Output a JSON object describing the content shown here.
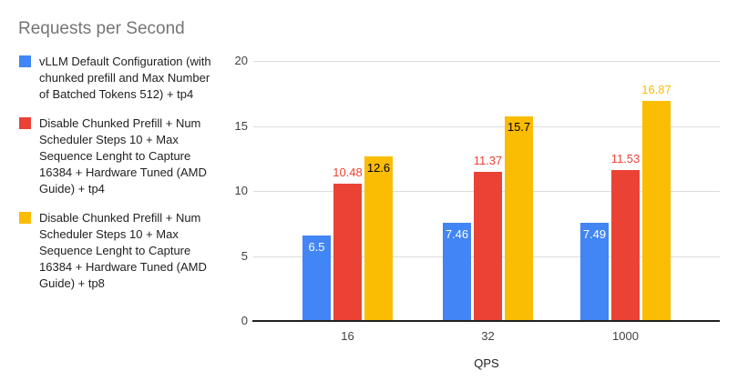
{
  "chart_data": {
    "type": "bar",
    "title": "Requests per Second",
    "title_color": "#757575",
    "xlabel": "QPS",
    "ylabel": "",
    "ylim": [
      0,
      20
    ],
    "yticks": [
      0,
      5,
      10,
      15,
      20
    ],
    "grid": true,
    "legend_position": "left",
    "categories": [
      "16",
      "32",
      "1000"
    ],
    "series": [
      {
        "name": "vLLM Default Configuration (with chunked prefill and Max Number of Batched Tokens 512) + tp4",
        "color": "#4285F4",
        "values": [
          6.5,
          7.46,
          7.49
        ],
        "value_labels": [
          "6.5",
          "7.46",
          "7.49"
        ],
        "label_placement": [
          "inside",
          "inside",
          "inside"
        ],
        "label_color_inside": "#ffffff"
      },
      {
        "name": "Disable Chunked Prefill + Num Scheduler Steps 10 + Max Sequence Lenght to Capture 16384 + Hardware Tuned (AMD Guide) + tp4",
        "color": "#EA4335",
        "values": [
          10.48,
          11.37,
          11.53
        ],
        "value_labels": [
          "10.48",
          "11.37",
          "11.53"
        ],
        "label_placement": [
          "above",
          "above",
          "above"
        ],
        "label_color_inside": "#000000"
      },
      {
        "name": "Disable Chunked Prefill + Num Scheduler Steps 10 + Max Sequence Lenght to Capture 16384 + Hardware Tuned (AMD Guide) + tp8",
        "color": "#FBBC04",
        "values": [
          12.6,
          15.7,
          16.87
        ],
        "value_labels": [
          "12.6",
          "15.7",
          "16.87"
        ],
        "label_placement": [
          "inside",
          "inside",
          "above"
        ],
        "label_color_inside": "#000000"
      }
    ]
  }
}
